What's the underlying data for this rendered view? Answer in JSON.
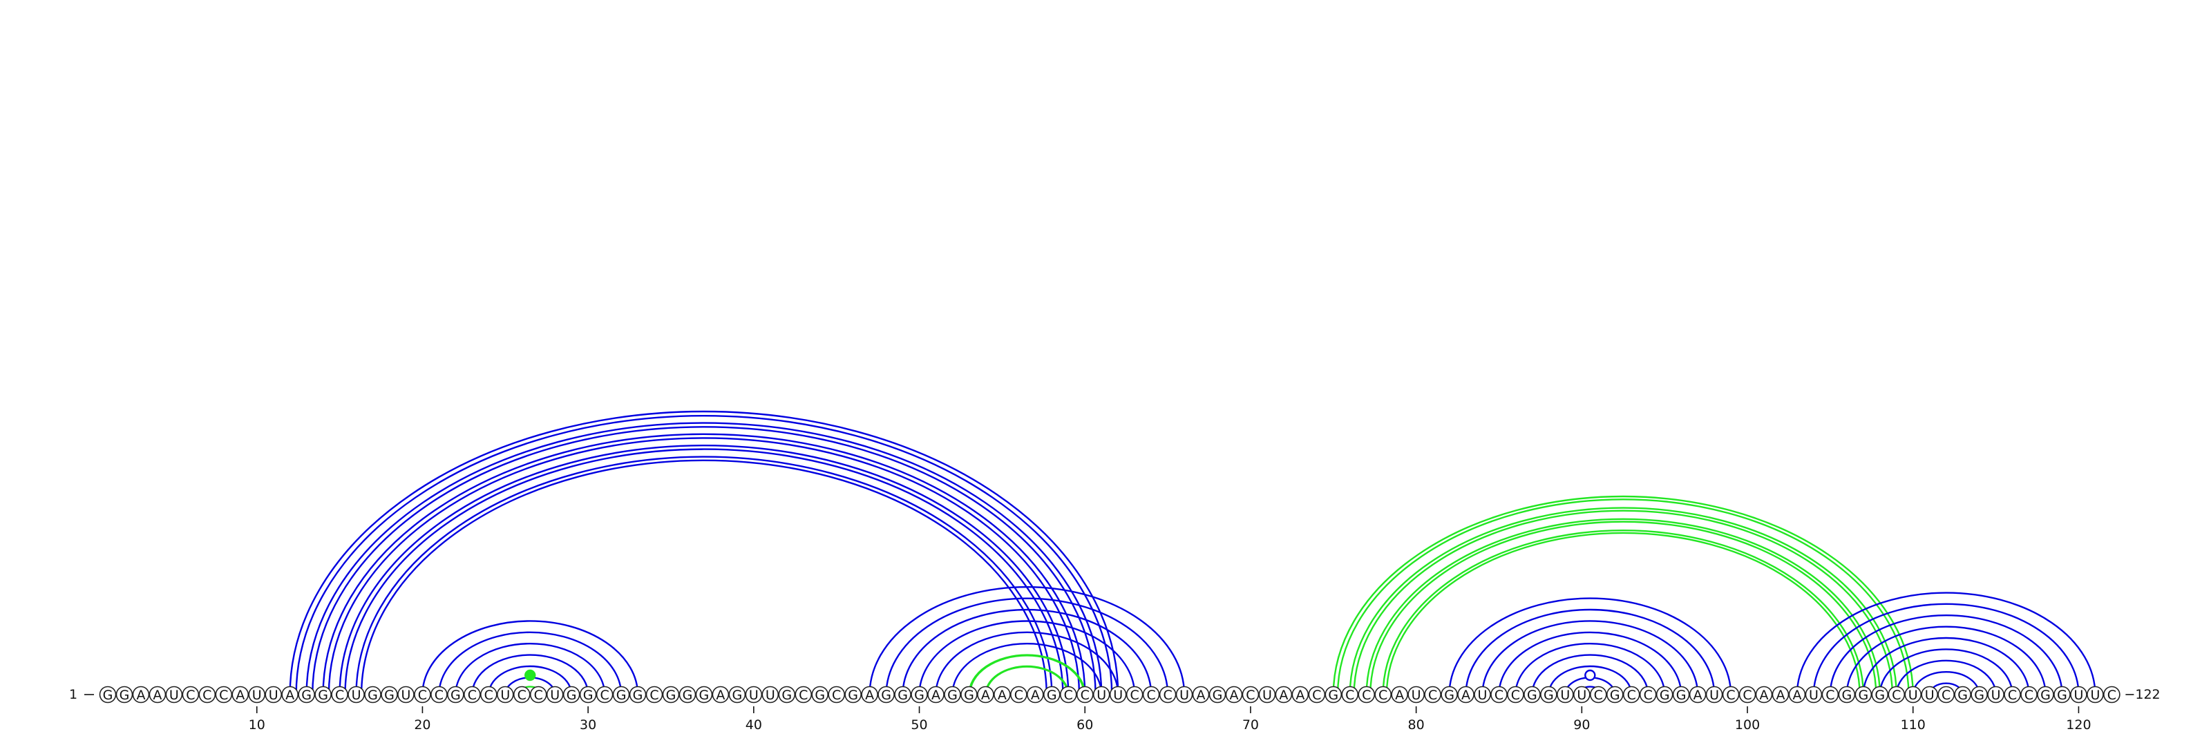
{
  "sequence": "GGAAUCCCAUUAGGCUGGUCCGCCUCCUGGCGGCGGGAGUUGCGCGAGGGAGGAACAGCCUUCCCUAGACUAACGCCCAUCGAUCCGGUUCGCCGGAUCCAAAUCGGGCUUCGGUCCGGUUC",
  "start_label": "1",
  "end_label": "122",
  "tick_positions": [
    10,
    20,
    30,
    40,
    50,
    60,
    70,
    80,
    90,
    100,
    110,
    120
  ],
  "tick_labels": [
    "10",
    "20",
    "30",
    "40",
    "50",
    "60",
    "70",
    "80",
    "90",
    "100",
    "110",
    "120"
  ],
  "colors": {
    "blue_arc": "#0000e0",
    "green_arc": "#22e622",
    "circle_stroke": "#222222",
    "text": "#111111"
  },
  "arc_groups": [
    {
      "color": "blue",
      "double": true,
      "pairs": [
        [
          12,
          62
        ],
        [
          13,
          61
        ],
        [
          14,
          60
        ],
        [
          15,
          59
        ],
        [
          16,
          58
        ]
      ]
    },
    {
      "color": "blue",
      "double": false,
      "pairs": [
        [
          20,
          33
        ],
        [
          21,
          32
        ],
        [
          22,
          31
        ],
        [
          23,
          30
        ],
        [
          24,
          29
        ],
        [
          25,
          28
        ]
      ]
    },
    {
      "color": "green",
      "double": false,
      "pairs": [
        [
          26,
          27
        ]
      ]
    },
    {
      "color": "blue",
      "double": false,
      "pairs": [
        [
          47,
          66
        ],
        [
          48,
          65
        ],
        [
          49,
          64
        ],
        [
          50,
          63
        ],
        [
          51,
          62
        ],
        [
          52,
          61
        ]
      ]
    },
    {
      "color": "green",
      "double": true,
      "pairs": [
        [
          53,
          60
        ],
        [
          54,
          59
        ]
      ]
    },
    {
      "color": "green",
      "double": true,
      "pairs": [
        [
          75,
          110
        ],
        [
          76,
          109
        ],
        [
          77,
          108
        ],
        [
          78,
          107
        ]
      ]
    },
    {
      "color": "blue",
      "double": false,
      "pairs": [
        [
          82,
          99
        ],
        [
          83,
          98
        ],
        [
          84,
          97
        ],
        [
          85,
          96
        ],
        [
          86,
          95
        ],
        [
          87,
          94
        ],
        [
          88,
          93
        ],
        [
          89,
          92
        ],
        [
          90,
          91
        ]
      ]
    },
    {
      "color": "blue",
      "double": false,
      "pairs": [
        [
          103,
          121
        ],
        [
          104,
          120
        ],
        [
          105,
          119
        ],
        [
          106,
          118
        ],
        [
          107,
          117
        ],
        [
          108,
          116
        ],
        [
          109,
          115
        ],
        [
          110,
          114
        ],
        [
          111,
          113
        ]
      ]
    }
  ]
}
